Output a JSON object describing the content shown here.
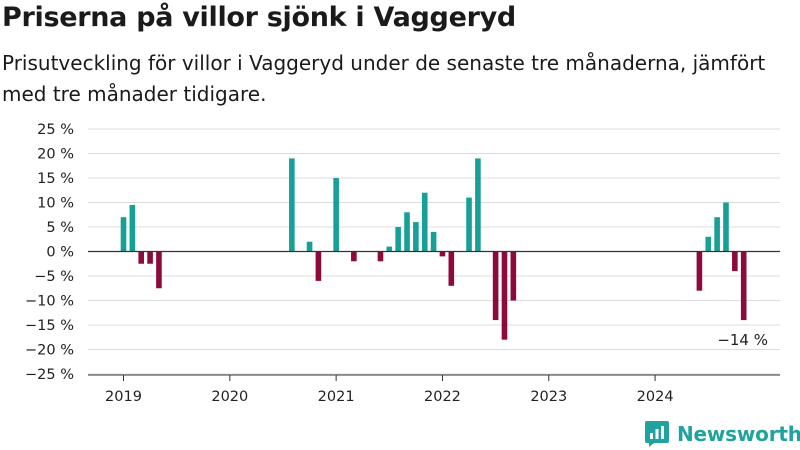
{
  "title": "Priserna på villor sjönk i Vaggeryd",
  "subtitle": "Prisutveckling för villor i Vaggeryd under de senaste tre månaderna, jämfört med tre månader tidigare.",
  "brand": {
    "name": "Newsworthy",
    "color": "#20a39e",
    "icon": "bar-chart-speech-bubble-icon"
  },
  "chart_data": {
    "type": "bar",
    "ylim": [
      -25,
      25
    ],
    "yticks": [
      25,
      20,
      15,
      10,
      5,
      0,
      -5,
      -10,
      -15,
      -20,
      -25
    ],
    "ytick_labels": [
      "25 %",
      "20 %",
      "15 %",
      "10 %",
      "5 %",
      "0 %",
      "−5 %",
      "−10 %",
      "−15 %",
      "−20 %",
      "−25 %"
    ],
    "xtick_labels": [
      "2019",
      "2020",
      "2021",
      "2022",
      "2023",
      "2024"
    ],
    "grid": true,
    "colors": {
      "positive": "#17a098",
      "negative": "#8c0a3c"
    },
    "annotation": {
      "text": "−14 %",
      "month": "2024-10"
    },
    "data": [
      {
        "month": "2019-01",
        "value": 7
      },
      {
        "month": "2019-02",
        "value": 9.5
      },
      {
        "month": "2019-03",
        "value": -2.5
      },
      {
        "month": "2019-04",
        "value": -2.5
      },
      {
        "month": "2019-05",
        "value": -7.5
      },
      {
        "month": "2020-08",
        "value": 19
      },
      {
        "month": "2020-10",
        "value": 2
      },
      {
        "month": "2020-11",
        "value": -6
      },
      {
        "month": "2021-01",
        "value": 15
      },
      {
        "month": "2021-03",
        "value": -2
      },
      {
        "month": "2021-06",
        "value": -2
      },
      {
        "month": "2021-07",
        "value": 1
      },
      {
        "month": "2021-08",
        "value": 5
      },
      {
        "month": "2021-09",
        "value": 8
      },
      {
        "month": "2021-10",
        "value": 6
      },
      {
        "month": "2021-11",
        "value": 12
      },
      {
        "month": "2021-12",
        "value": 4
      },
      {
        "month": "2022-01",
        "value": -1
      },
      {
        "month": "2022-02",
        "value": -7
      },
      {
        "month": "2022-04",
        "value": 11
      },
      {
        "month": "2022-05",
        "value": 19
      },
      {
        "month": "2022-07",
        "value": -14
      },
      {
        "month": "2022-08",
        "value": -18
      },
      {
        "month": "2022-09",
        "value": -10
      },
      {
        "month": "2024-06",
        "value": -8
      },
      {
        "month": "2024-07",
        "value": 3
      },
      {
        "month": "2024-08",
        "value": 7
      },
      {
        "month": "2024-09",
        "value": 10
      },
      {
        "month": "2024-10",
        "value": -4
      },
      {
        "month": "2024-11",
        "value": -14
      }
    ]
  }
}
